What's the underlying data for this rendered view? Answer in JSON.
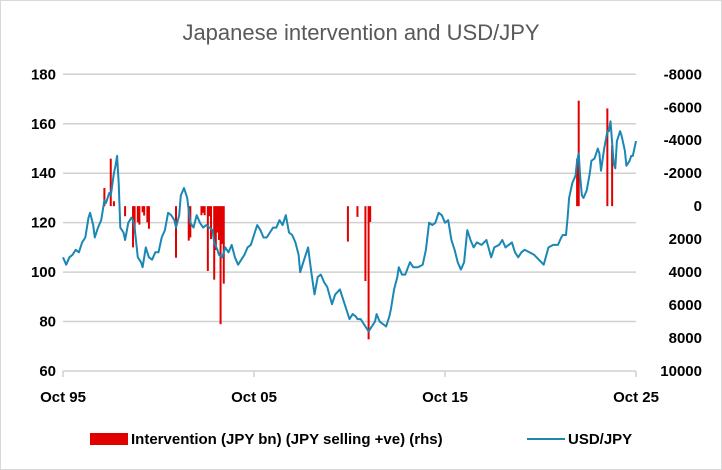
{
  "chart_data": {
    "type": "bar+line",
    "title": "Japanese intervention and USD/JPY",
    "x_ticks": [
      "Oct 95",
      "Oct 05",
      "Oct 15",
      "Oct 25"
    ],
    "x_range": [
      "1995-10",
      "2025-10"
    ],
    "left_axis": {
      "range": [
        60,
        180
      ],
      "ticks": [
        "60",
        "80",
        "100",
        "120",
        "140",
        "160",
        "180"
      ]
    },
    "right_axis": {
      "range": [
        -8000,
        10000
      ],
      "inverted": true,
      "ticks": [
        "-8000",
        "-6000",
        "-4000",
        "-2000",
        "0",
        "2000",
        "4000",
        "6000",
        "8000",
        "10000"
      ]
    },
    "grid": "horizontal, left axis",
    "legend_placement": "bottom",
    "colors": {
      "intervention": "#e00000",
      "usdjpy": "#1a87b4",
      "grid": "#d0d0d0"
    },
    "series": [
      {
        "name": "Intervention (JPY bn) (JPY selling +ve) (rhs)",
        "type": "bar",
        "axis": "right",
        "points": [
          [
            "1997-12",
            -1100
          ],
          [
            "1998-04",
            -2880
          ],
          [
            "1998-06",
            -300
          ],
          [
            "1999-01",
            610
          ],
          [
            "1999-06",
            2500
          ],
          [
            "1999-07",
            1640
          ],
          [
            "1999-09",
            980
          ],
          [
            "1999-10",
            1120
          ],
          [
            "1999-12",
            370
          ],
          [
            "2000-01",
            570
          ],
          [
            "2000-03",
            980
          ],
          [
            "2000-04",
            1370
          ],
          [
            "2001-09",
            3130
          ],
          [
            "2002-05",
            2090
          ],
          [
            "2002-06",
            1900
          ],
          [
            "2003-01",
            550
          ],
          [
            "2003-02",
            400
          ],
          [
            "2003-03",
            550
          ],
          [
            "2003-05",
            3930
          ],
          [
            "2003-06",
            610
          ],
          [
            "2003-07",
            2000
          ],
          [
            "2003-09",
            4460
          ],
          [
            "2003-10",
            2660
          ],
          [
            "2003-11",
            1600
          ],
          [
            "2003-12",
            2050
          ],
          [
            "2004-01",
            7160
          ],
          [
            "2004-02",
            2290
          ],
          [
            "2004-03",
            4700
          ],
          [
            "2010-09",
            2150
          ],
          [
            "2011-03",
            650
          ],
          [
            "2011-08",
            4540
          ],
          [
            "2011-10",
            8080
          ],
          [
            "2011-11",
            960
          ],
          [
            "2022-09",
            -2860
          ],
          [
            "2022-10",
            -6400
          ],
          [
            "2024-04",
            -5930
          ],
          [
            "2024-07",
            -3700
          ]
        ]
      },
      {
        "name": "USD/JPY",
        "type": "line",
        "axis": "left",
        "points": [
          [
            "1995-10",
            106
          ],
          [
            "1995-12",
            103
          ],
          [
            "1996-02",
            106
          ],
          [
            "1996-04",
            107
          ],
          [
            "1996-06",
            109
          ],
          [
            "1996-08",
            108
          ],
          [
            "1996-10",
            112
          ],
          [
            "1996-12",
            114
          ],
          [
            "1997-02",
            122
          ],
          [
            "1997-03",
            124
          ],
          [
            "1997-05",
            119
          ],
          [
            "1997-06",
            114
          ],
          [
            "1997-08",
            118
          ],
          [
            "1997-10",
            121
          ],
          [
            "1997-12",
            129
          ],
          [
            "1998-01",
            128
          ],
          [
            "1998-03",
            132
          ],
          [
            "1998-04",
            131
          ],
          [
            "1998-06",
            140
          ],
          [
            "1998-07",
            143
          ],
          [
            "1998-08",
            147
          ],
          [
            "1998-09",
            136
          ],
          [
            "1998-10",
            118
          ],
          [
            "1998-12",
            116
          ],
          [
            "1999-01",
            113
          ],
          [
            "1999-03",
            120
          ],
          [
            "1999-05",
            122
          ],
          [
            "1999-06",
            121
          ],
          [
            "1999-07",
            118
          ],
          [
            "1999-09",
            106
          ],
          [
            "1999-11",
            104
          ],
          [
            "1999-12",
            102
          ],
          [
            "2000-02",
            110
          ],
          [
            "2000-04",
            106
          ],
          [
            "2000-06",
            105
          ],
          [
            "2000-08",
            108
          ],
          [
            "2000-10",
            108
          ],
          [
            "2000-12",
            114
          ],
          [
            "2001-02",
            117
          ],
          [
            "2001-04",
            124
          ],
          [
            "2001-06",
            123
          ],
          [
            "2001-08",
            121
          ],
          [
            "2001-09",
            118
          ],
          [
            "2001-11",
            123
          ],
          [
            "2001-12",
            131
          ],
          [
            "2002-02",
            134
          ],
          [
            "2002-04",
            130
          ],
          [
            "2002-06",
            120
          ],
          [
            "2002-08",
            118
          ],
          [
            "2002-10",
            123
          ],
          [
            "2002-12",
            120
          ],
          [
            "2003-02",
            118
          ],
          [
            "2003-04",
            119
          ],
          [
            "2003-06",
            118
          ],
          [
            "2003-08",
            117
          ],
          [
            "2003-09",
            112
          ],
          [
            "2003-11",
            109
          ],
          [
            "2003-12",
            107
          ],
          [
            "2004-02",
            106
          ],
          [
            "2004-04",
            110
          ],
          [
            "2004-06",
            108
          ],
          [
            "2004-08",
            111
          ],
          [
            "2004-10",
            106
          ],
          [
            "2004-12",
            103
          ],
          [
            "2005-02",
            105
          ],
          [
            "2005-04",
            107
          ],
          [
            "2005-06",
            110
          ],
          [
            "2005-08",
            111
          ],
          [
            "2005-10",
            115
          ],
          [
            "2005-12",
            119
          ],
          [
            "2006-02",
            117
          ],
          [
            "2006-04",
            114
          ],
          [
            "2006-06",
            114
          ],
          [
            "2006-08",
            116
          ],
          [
            "2006-10",
            118
          ],
          [
            "2006-12",
            118
          ],
          [
            "2007-02",
            121
          ],
          [
            "2007-04",
            119
          ],
          [
            "2007-06",
            123
          ],
          [
            "2007-08",
            116
          ],
          [
            "2007-10",
            115
          ],
          [
            "2007-12",
            112
          ],
          [
            "2008-02",
            107
          ],
          [
            "2008-03",
            100
          ],
          [
            "2008-05",
            104
          ],
          [
            "2008-08",
            110
          ],
          [
            "2008-10",
            100
          ],
          [
            "2008-12",
            91
          ],
          [
            "2009-02",
            98
          ],
          [
            "2009-04",
            99
          ],
          [
            "2009-06",
            96
          ],
          [
            "2009-08",
            94
          ],
          [
            "2009-11",
            87
          ],
          [
            "2010-01",
            91
          ],
          [
            "2010-04",
            93
          ],
          [
            "2010-06",
            89
          ],
          [
            "2010-08",
            85
          ],
          [
            "2010-10",
            81
          ],
          [
            "2010-12",
            83
          ],
          [
            "2011-02",
            82
          ],
          [
            "2011-03",
            81
          ],
          [
            "2011-05",
            81
          ],
          [
            "2011-07",
            79
          ],
          [
            "2011-09",
            77
          ],
          [
            "2011-10",
            76
          ],
          [
            "2011-12",
            78
          ],
          [
            "2012-02",
            80
          ],
          [
            "2012-03",
            83
          ],
          [
            "2012-05",
            80
          ],
          [
            "2012-07",
            79
          ],
          [
            "2012-09",
            78
          ],
          [
            "2012-11",
            82
          ],
          [
            "2012-12",
            85
          ],
          [
            "2013-02",
            93
          ],
          [
            "2013-04",
            98
          ],
          [
            "2013-05",
            102
          ],
          [
            "2013-07",
            99
          ],
          [
            "2013-09",
            99
          ],
          [
            "2013-12",
            104
          ],
          [
            "2014-02",
            102
          ],
          [
            "2014-05",
            102
          ],
          [
            "2014-08",
            103
          ],
          [
            "2014-10",
            109
          ],
          [
            "2014-12",
            120
          ],
          [
            "2015-02",
            119
          ],
          [
            "2015-04",
            120
          ],
          [
            "2015-06",
            124
          ],
          [
            "2015-08",
            123
          ],
          [
            "2015-10",
            120
          ],
          [
            "2015-12",
            121
          ],
          [
            "2016-02",
            113
          ],
          [
            "2016-04",
            109
          ],
          [
            "2016-06",
            104
          ],
          [
            "2016-08",
            101
          ],
          [
            "2016-10",
            104
          ],
          [
            "2016-12",
            117
          ],
          [
            "2017-02",
            113
          ],
          [
            "2017-04",
            110
          ],
          [
            "2017-06",
            112
          ],
          [
            "2017-09",
            111
          ],
          [
            "2017-12",
            113
          ],
          [
            "2018-03",
            106
          ],
          [
            "2018-05",
            110
          ],
          [
            "2018-08",
            111
          ],
          [
            "2018-10",
            113
          ],
          [
            "2018-12",
            110
          ],
          [
            "2019-02",
            111
          ],
          [
            "2019-04",
            112
          ],
          [
            "2019-06",
            108
          ],
          [
            "2019-08",
            106
          ],
          [
            "2019-10",
            108
          ],
          [
            "2019-12",
            109
          ],
          [
            "2020-03",
            108
          ],
          [
            "2020-06",
            107
          ],
          [
            "2020-09",
            105
          ],
          [
            "2020-12",
            103
          ],
          [
            "2021-03",
            110
          ],
          [
            "2021-06",
            111
          ],
          [
            "2021-09",
            111
          ],
          [
            "2021-11",
            114
          ],
          [
            "2021-12",
            115
          ],
          [
            "2022-02",
            115
          ],
          [
            "2022-03",
            122
          ],
          [
            "2022-04",
            130
          ],
          [
            "2022-06",
            136
          ],
          [
            "2022-08",
            139
          ],
          [
            "2022-09",
            145
          ],
          [
            "2022-10",
            148
          ],
          [
            "2022-11",
            138
          ],
          [
            "2022-12",
            131
          ],
          [
            "2023-01",
            130
          ],
          [
            "2023-03",
            133
          ],
          [
            "2023-05",
            140
          ],
          [
            "2023-06",
            145
          ],
          [
            "2023-08",
            146
          ],
          [
            "2023-10",
            150
          ],
          [
            "2023-11",
            148
          ],
          [
            "2023-12",
            141
          ],
          [
            "2024-02",
            150
          ],
          [
            "2024-04",
            157
          ],
          [
            "2024-05",
            157
          ],
          [
            "2024-06",
            161
          ],
          [
            "2024-08",
            144
          ],
          [
            "2024-09",
            142
          ],
          [
            "2024-10",
            153
          ],
          [
            "2024-12",
            157
          ],
          [
            "2025-01",
            155
          ],
          [
            "2025-03",
            149
          ],
          [
            "2025-04",
            143
          ],
          [
            "2025-06",
            145
          ],
          [
            "2025-07",
            147
          ],
          [
            "2025-08",
            147
          ],
          [
            "2025-10",
            153
          ]
        ]
      }
    ]
  }
}
